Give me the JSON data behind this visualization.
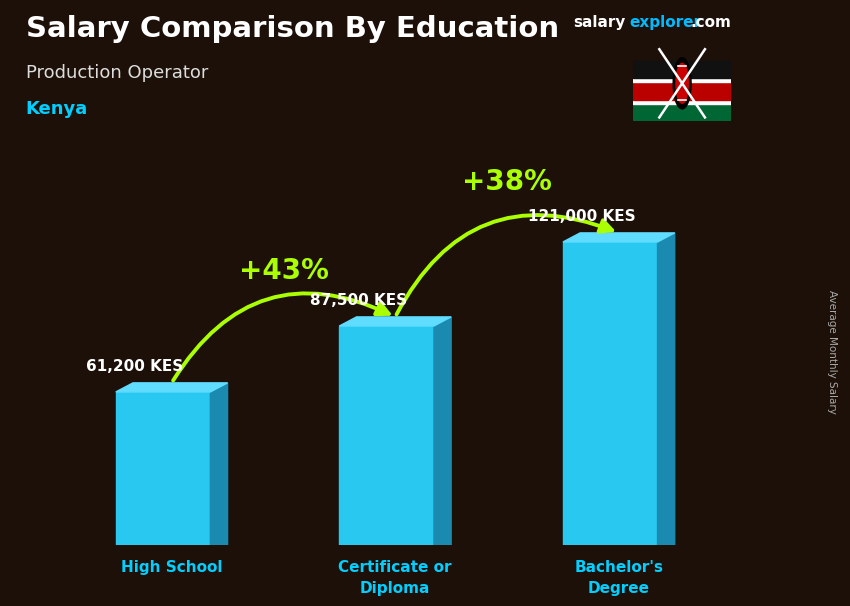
{
  "title": "Salary Comparison By Education",
  "subtitle": "Production Operator",
  "country": "Kenya",
  "categories": [
    "High School",
    "Certificate or\nDiploma",
    "Bachelor's\nDegree"
  ],
  "values": [
    61200,
    87500,
    121000
  ],
  "value_labels": [
    "61,200 KES",
    "87,500 KES",
    "121,000 KES"
  ],
  "pct_labels": [
    "+43%",
    "+38%"
  ],
  "bar_color_face": "#29C8F0",
  "bar_color_side": "#1A8AB0",
  "bar_color_top": "#60DCFF",
  "background_overlay": "#2a1a0acc",
  "title_color": "#ffffff",
  "subtitle_color": "#dddddd",
  "country_color": "#00CFFF",
  "category_color": "#00CFFF",
  "value_label_color": "#ffffff",
  "pct_color": "#AAFF00",
  "arrow_color": "#AAFF00",
  "brand_salary_color": "#ffffff",
  "brand_explorer_color": "#00BBFF",
  "brand_com_color": "#ffffff",
  "ymax": 145000,
  "rotated_label": "Average Monthly Salary",
  "rotated_label_color": "#aaaaaa",
  "bar_positions": [
    1.0,
    2.3,
    3.6
  ],
  "bar_width": 0.55
}
